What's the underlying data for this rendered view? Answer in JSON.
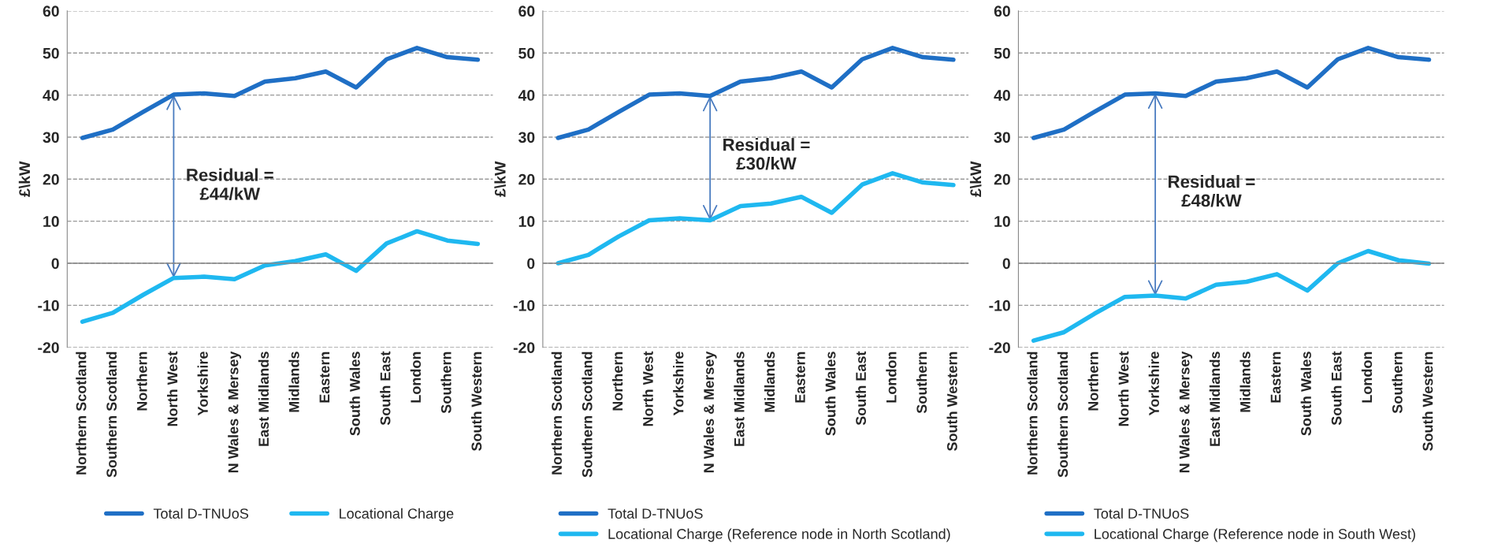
{
  "chart_data": [
    {
      "type": "line",
      "ylabel": "£\\kW",
      "categories": [
        "Northern Scotland",
        "Southern Scotland",
        "Northern",
        "North West",
        "Yorkshire",
        "N Wales & Mersey",
        "East Midlands",
        "Midlands",
        "Eastern",
        "South Wales",
        "South East",
        "London",
        "Southern",
        "South Western"
      ],
      "series": [
        {
          "name": "Total D-TNUoS",
          "color": "#1f6fc5",
          "values": [
            29.8,
            31.8,
            36,
            40.1,
            40.4,
            39.8,
            43.2,
            44,
            45.6,
            41.8,
            48.5,
            51.2,
            49,
            48.4
          ]
        },
        {
          "name": "Locational Charge",
          "color": "#1fb8f0",
          "values": [
            -13.9,
            -11.8,
            -7.5,
            -3.5,
            -3.2,
            -3.8,
            -0.5,
            0.5,
            2.1,
            -1.8,
            4.7,
            7.6,
            5.4,
            4.6
          ]
        }
      ],
      "ylim": [
        -20,
        60
      ],
      "yticks": [
        -20,
        -10,
        0,
        10,
        20,
        30,
        40,
        50,
        60
      ],
      "grid": "y",
      "legend": "bottom",
      "annotations": [
        "Residual =\n£44/kW"
      ]
    },
    {
      "type": "line",
      "ylabel": "£\\kW",
      "categories": [
        "Northern Scotland",
        "Southern Scotland",
        "Northern",
        "North West",
        "Yorkshire",
        "N Wales & Mersey",
        "East Midlands",
        "Midlands",
        "Eastern",
        "South Wales",
        "South East",
        "London",
        "Southern",
        "South Western"
      ],
      "series": [
        {
          "name": "Total D-TNUoS",
          "color": "#1f6fc5",
          "values": [
            29.8,
            31.8,
            36,
            40.1,
            40.4,
            39.8,
            43.2,
            44,
            45.6,
            41.8,
            48.5,
            51.2,
            49,
            48.4
          ]
        },
        {
          "name": "Locational Charge (Reference node in North Scotland)",
          "color": "#1fb8f0",
          "values": [
            0,
            2,
            6.4,
            10.2,
            10.7,
            10.2,
            13.6,
            14.2,
            15.8,
            12,
            18.7,
            21.4,
            19.2,
            18.6
          ]
        }
      ],
      "ylim": [
        -20,
        60
      ],
      "yticks": [
        -20,
        -10,
        0,
        10,
        20,
        30,
        40,
        50,
        60
      ],
      "grid": "y",
      "legend": "bottom",
      "annotations": [
        "Residual =\n£30/kW"
      ]
    },
    {
      "type": "line",
      "ylabel": "£\\kW",
      "categories": [
        "Northern Scotland",
        "Southern Scotland",
        "Northern",
        "North West",
        "Yorkshire",
        "N Wales & Mersey",
        "East Midlands",
        "Midlands",
        "Eastern",
        "South Wales",
        "South East",
        "London",
        "Southern",
        "South Western"
      ],
      "series": [
        {
          "name": "Total D-TNUoS",
          "color": "#1f6fc5",
          "values": [
            29.8,
            31.8,
            36,
            40.1,
            40.4,
            39.8,
            43.2,
            44,
            45.6,
            41.8,
            48.5,
            51.2,
            49,
            48.4
          ]
        },
        {
          "name": "Locational Charge (Reference node in South West)",
          "color": "#1fb8f0",
          "values": [
            -18.4,
            -16.4,
            -12,
            -8,
            -7.7,
            -8.4,
            -5.1,
            -4.4,
            -2.6,
            -6.5,
            0,
            2.9,
            0.7,
            -0.1
          ]
        }
      ],
      "ylim": [
        -20,
        60
      ],
      "yticks": [
        -20,
        -10,
        0,
        10,
        20,
        30,
        40,
        50,
        60
      ],
      "grid": "y",
      "legend": "bottom",
      "annotations": [
        "Residual =\n£48/kW"
      ]
    }
  ]
}
